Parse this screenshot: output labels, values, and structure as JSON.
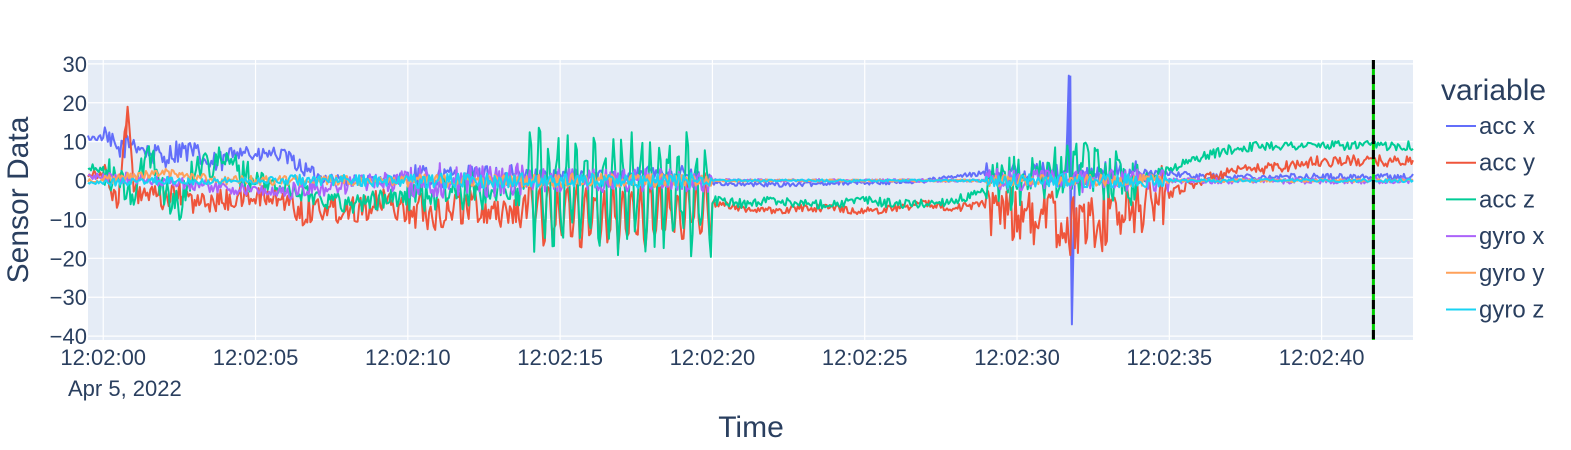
{
  "chart_data": {
    "type": "line",
    "title": "",
    "xlabel": "Time",
    "ylabel": "Sensor Data",
    "x_date_label": "Apr 5, 2022",
    "x_range": [
      "12:01:59.5",
      "12:02:43.0"
    ],
    "ylim": [
      -41,
      31
    ],
    "x_ticks": [
      "12:02:00",
      "12:02:05",
      "12:02:10",
      "12:02:15",
      "12:02:20",
      "12:02:25",
      "12:02:30",
      "12:02:35",
      "12:02:40"
    ],
    "y_ticks": [
      30,
      20,
      10,
      0,
      -10,
      -20,
      -30,
      -40
    ],
    "y_tick_labels": [
      "30",
      "20",
      "10",
      "0",
      "−10",
      "−20",
      "−30",
      "−40"
    ],
    "grid": true,
    "legend": {
      "title": "variable",
      "placement": "right"
    },
    "marker_line": {
      "time": "12:02:41.7",
      "style": "dashed",
      "colors": [
        "#00cc00",
        "#000000"
      ]
    },
    "series": [
      {
        "name": "acc x",
        "color": "#636efa",
        "points": [
          [
            0,
            11
          ],
          [
            0.5,
            8
          ],
          [
            1,
            10
          ],
          [
            1.5,
            7
          ],
          [
            2,
            6
          ],
          [
            2.5,
            8
          ],
          [
            3,
            7
          ],
          [
            3.5,
            4
          ],
          [
            4,
            5
          ],
          [
            4.5,
            9
          ],
          [
            5,
            6
          ],
          [
            5.5,
            7
          ],
          [
            6,
            6
          ],
          [
            7,
            1
          ],
          [
            8,
            0
          ],
          [
            9,
            0
          ],
          [
            10,
            1
          ],
          [
            11,
            1
          ],
          [
            12,
            1
          ],
          [
            13,
            1
          ],
          [
            14,
            1
          ],
          [
            15,
            1
          ],
          [
            16,
            1
          ],
          [
            17,
            1
          ],
          [
            18,
            2
          ],
          [
            19,
            2
          ],
          [
            20,
            -0.5
          ],
          [
            21,
            -1
          ],
          [
            22,
            -1
          ],
          [
            23,
            -1
          ],
          [
            24,
            -0.5
          ],
          [
            25,
            -0.5
          ],
          [
            26,
            -0.5
          ],
          [
            27,
            0
          ],
          [
            28,
            1
          ],
          [
            29,
            2
          ],
          [
            30,
            2
          ],
          [
            31,
            2
          ],
          [
            31.6,
            2
          ],
          [
            31.7,
            27
          ],
          [
            31.8,
            -37
          ],
          [
            31.9,
            2
          ],
          [
            32.5,
            1
          ],
          [
            33,
            2
          ],
          [
            34,
            2
          ],
          [
            35,
            2
          ],
          [
            36,
            1
          ],
          [
            37,
            1
          ],
          [
            38,
            1
          ],
          [
            39,
            1
          ],
          [
            40,
            1
          ],
          [
            41,
            1
          ],
          [
            42,
            1
          ],
          [
            43,
            1
          ]
        ],
        "noise": [
          [
            0,
            5,
            3
          ],
          [
            5,
            7,
            2
          ],
          [
            7,
            10,
            1.5
          ],
          [
            10,
            14,
            3
          ],
          [
            14,
            20,
            2
          ],
          [
            20,
            29,
            0.6
          ],
          [
            29,
            34,
            3
          ],
          [
            34,
            43,
            0.8
          ]
        ]
      },
      {
        "name": "acc y",
        "color": "#ef553b",
        "points": [
          [
            0,
            2
          ],
          [
            0.5,
            -5
          ],
          [
            0.8,
            19
          ],
          [
            1,
            -3
          ],
          [
            1.5,
            -4
          ],
          [
            2,
            -5
          ],
          [
            2.5,
            -3
          ],
          [
            3,
            -6
          ],
          [
            4,
            -5
          ],
          [
            5,
            -4
          ],
          [
            6,
            -5
          ],
          [
            6.5,
            -8
          ],
          [
            7,
            -7
          ],
          [
            8,
            -7
          ],
          [
            9,
            -6
          ],
          [
            10,
            -7
          ],
          [
            11,
            -8
          ],
          [
            12,
            -6
          ],
          [
            13,
            -8
          ],
          [
            14,
            -7
          ],
          [
            15,
            -9
          ],
          [
            16,
            -9
          ],
          [
            17,
            -9
          ],
          [
            18,
            -9
          ],
          [
            19,
            -8
          ],
          [
            20,
            -6
          ],
          [
            21,
            -7
          ],
          [
            22,
            -8
          ],
          [
            23,
            -7
          ],
          [
            24,
            -7
          ],
          [
            25,
            -8
          ],
          [
            26,
            -7
          ],
          [
            27,
            -6
          ],
          [
            28,
            -7
          ],
          [
            29,
            -6
          ],
          [
            30,
            -8
          ],
          [
            31,
            -10
          ],
          [
            32,
            -12
          ],
          [
            33,
            -10
          ],
          [
            34,
            -7
          ],
          [
            35,
            -3
          ],
          [
            36,
            0
          ],
          [
            37,
            2
          ],
          [
            38,
            3
          ],
          [
            39,
            4
          ],
          [
            40,
            5
          ],
          [
            41,
            5
          ],
          [
            42,
            5
          ],
          [
            43,
            5
          ]
        ],
        "noise": [
          [
            0,
            6,
            3
          ],
          [
            6,
            10,
            4
          ],
          [
            10,
            14,
            5
          ],
          [
            14,
            20,
            9
          ],
          [
            20,
            29,
            1
          ],
          [
            29,
            35,
            8
          ],
          [
            35,
            43,
            1.5
          ]
        ]
      },
      {
        "name": "acc z",
        "color": "#00cc96",
        "points": [
          [
            0,
            3
          ],
          [
            1,
            -4
          ],
          [
            1.5,
            8
          ],
          [
            2,
            -3
          ],
          [
            2.5,
            -7
          ],
          [
            3,
            4
          ],
          [
            4,
            5
          ],
          [
            5,
            0
          ],
          [
            6,
            -2
          ],
          [
            7,
            -4
          ],
          [
            8,
            -6
          ],
          [
            9,
            -5
          ],
          [
            10,
            -4
          ],
          [
            11,
            -3
          ],
          [
            12,
            -3
          ],
          [
            13,
            -2
          ],
          [
            14,
            -2
          ],
          [
            15,
            -2
          ],
          [
            16,
            -2
          ],
          [
            17,
            -2
          ],
          [
            18,
            -2
          ],
          [
            19,
            -2
          ],
          [
            20,
            -5
          ],
          [
            21,
            -6
          ],
          [
            22,
            -5
          ],
          [
            23,
            -6
          ],
          [
            24,
            -6
          ],
          [
            25,
            -5
          ],
          [
            26,
            -6
          ],
          [
            27,
            -6
          ],
          [
            28,
            -5
          ],
          [
            29,
            -3
          ],
          [
            30,
            0
          ],
          [
            31,
            2
          ],
          [
            32,
            3
          ],
          [
            33,
            2
          ],
          [
            34,
            0
          ],
          [
            35,
            3
          ],
          [
            36,
            6
          ],
          [
            37,
            8
          ],
          [
            38,
            9
          ],
          [
            39,
            9
          ],
          [
            40,
            9
          ],
          [
            41,
            9
          ],
          [
            42,
            9
          ],
          [
            43,
            9
          ]
        ],
        "noise": [
          [
            0,
            5,
            4
          ],
          [
            5,
            10,
            2.5
          ],
          [
            10,
            14,
            5
          ],
          [
            14,
            20,
            16
          ],
          [
            20,
            29,
            1.2
          ],
          [
            29,
            34,
            7
          ],
          [
            34,
            43,
            1.2
          ]
        ]
      },
      {
        "name": "gyro x",
        "color": "#ab63fa",
        "points": [
          [
            0,
            1
          ],
          [
            2,
            0
          ],
          [
            4,
            -2
          ],
          [
            6,
            -3
          ],
          [
            8,
            -1
          ],
          [
            10,
            0
          ],
          [
            12,
            0
          ],
          [
            14,
            0
          ],
          [
            16,
            0
          ],
          [
            18,
            0
          ],
          [
            20,
            0
          ],
          [
            22,
            0
          ],
          [
            24,
            0
          ],
          [
            26,
            0
          ],
          [
            28,
            0
          ],
          [
            30,
            0
          ],
          [
            32,
            0
          ],
          [
            34,
            0
          ],
          [
            36,
            0
          ],
          [
            38,
            0
          ],
          [
            40,
            0
          ],
          [
            43,
            0
          ]
        ],
        "noise": [
          [
            0,
            6,
            1.5
          ],
          [
            6,
            10,
            2.5
          ],
          [
            10,
            14,
            4.5
          ],
          [
            14,
            20,
            3
          ],
          [
            20,
            29,
            0.4
          ],
          [
            29,
            35,
            3
          ],
          [
            35,
            43,
            0.8
          ]
        ]
      },
      {
        "name": "gyro y",
        "color": "#ffa15a",
        "points": [
          [
            0,
            0
          ],
          [
            2,
            2
          ],
          [
            4,
            0
          ],
          [
            6,
            0
          ],
          [
            8,
            0
          ],
          [
            10,
            0
          ],
          [
            12,
            0
          ],
          [
            14,
            0
          ],
          [
            16,
            0
          ],
          [
            18,
            0
          ],
          [
            20,
            0
          ],
          [
            22,
            0
          ],
          [
            24,
            0
          ],
          [
            26,
            0
          ],
          [
            28,
            0
          ],
          [
            30,
            0
          ],
          [
            32,
            0
          ],
          [
            34,
            0
          ],
          [
            36,
            0
          ],
          [
            38,
            0
          ],
          [
            40,
            0
          ],
          [
            43,
            0
          ]
        ],
        "noise": [
          [
            0,
            6,
            1.2
          ],
          [
            6,
            10,
            1.2
          ],
          [
            10,
            14,
            1.6
          ],
          [
            14,
            20,
            1.8
          ],
          [
            20,
            29,
            0.3
          ],
          [
            29,
            35,
            1.5
          ],
          [
            35,
            43,
            0.4
          ]
        ]
      },
      {
        "name": "gyro z",
        "color": "#19d3f3",
        "points": [
          [
            0,
            -0.5
          ],
          [
            2,
            0
          ],
          [
            4,
            0
          ],
          [
            6,
            0
          ],
          [
            8,
            0
          ],
          [
            10,
            0
          ],
          [
            12,
            0
          ],
          [
            14,
            0
          ],
          [
            16,
            0
          ],
          [
            18,
            0
          ],
          [
            20,
            0
          ],
          [
            22,
            0
          ],
          [
            24,
            0
          ],
          [
            26,
            0
          ],
          [
            28,
            0
          ],
          [
            30,
            0
          ],
          [
            32,
            0
          ],
          [
            34,
            0
          ],
          [
            36,
            0
          ],
          [
            38,
            0
          ],
          [
            40,
            0
          ],
          [
            43,
            0
          ]
        ],
        "noise": [
          [
            0,
            6,
            1
          ],
          [
            6,
            10,
            1.5
          ],
          [
            10,
            14,
            2
          ],
          [
            14,
            20,
            2
          ],
          [
            20,
            29,
            0.3
          ],
          [
            29,
            35,
            1.8
          ],
          [
            35,
            43,
            0.4
          ]
        ]
      }
    ]
  }
}
